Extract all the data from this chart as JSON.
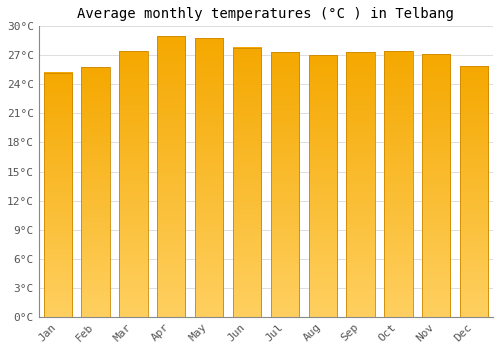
{
  "title": "Average monthly temperatures (°C ) in Telbang",
  "months": [
    "Jan",
    "Feb",
    "Mar",
    "Apr",
    "May",
    "Jun",
    "Jul",
    "Aug",
    "Sep",
    "Oct",
    "Nov",
    "Dec"
  ],
  "values": [
    25.2,
    25.8,
    27.4,
    29.0,
    28.8,
    27.8,
    27.3,
    27.0,
    27.3,
    27.4,
    27.1,
    25.9
  ],
  "bar_color_bottom": "#FFD060",
  "bar_color_top": "#F5A800",
  "bar_edge_color": "#CC8800",
  "background_color": "#FFFFFF",
  "grid_color": "#DDDDDD",
  "ylim": [
    0,
    30
  ],
  "yticks": [
    0,
    3,
    6,
    9,
    12,
    15,
    18,
    21,
    24,
    27,
    30
  ],
  "ytick_labels": [
    "0°C",
    "3°C",
    "6°C",
    "9°C",
    "12°C",
    "15°C",
    "18°C",
    "21°C",
    "24°C",
    "27°C",
    "30°C"
  ],
  "title_fontsize": 10,
  "tick_fontsize": 8,
  "font_family": "monospace",
  "bar_width": 0.75
}
